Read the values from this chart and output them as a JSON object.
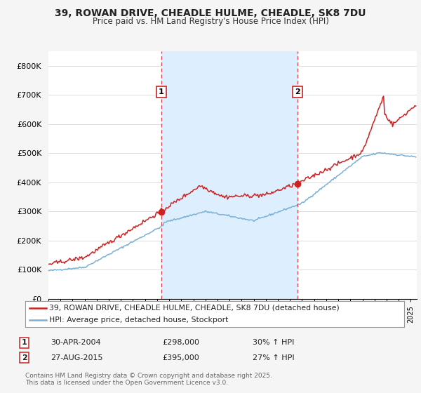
{
  "title": "39, ROWAN DRIVE, CHEADLE HULME, CHEADLE, SK8 7DU",
  "subtitle": "Price paid vs. HM Land Registry's House Price Index (HPI)",
  "legend_line1": "39, ROWAN DRIVE, CHEADLE HULME, CHEADLE, SK8 7DU (detached house)",
  "legend_line2": "HPI: Average price, detached house, Stockport",
  "annotation1": {
    "label": "1",
    "date": "30-APR-2004",
    "price": "£298,000",
    "hpi": "30% ↑ HPI"
  },
  "annotation2": {
    "label": "2",
    "date": "27-AUG-2015",
    "price": "£395,000",
    "hpi": "27% ↑ HPI"
  },
  "footer": "Contains HM Land Registry data © Crown copyright and database right 2025.\nThis data is licensed under the Open Government Licence v3.0.",
  "ylim": [
    0,
    850000
  ],
  "yticks": [
    0,
    100000,
    200000,
    300000,
    400000,
    500000,
    600000,
    700000,
    800000
  ],
  "ytick_labels": [
    "£0",
    "£100K",
    "£200K",
    "£300K",
    "£400K",
    "£500K",
    "£600K",
    "£700K",
    "£800K"
  ],
  "line_color_red": "#cc2222",
  "line_color_blue": "#7ab0d4",
  "vline_color": "#cc2222",
  "highlight_color": "#ddeeff",
  "background_color": "#f5f5f5",
  "plot_bg": "#ffffff",
  "grid_color": "#dddddd",
  "sale1_x": 2004.33,
  "sale1_y": 298000,
  "sale2_x": 2015.65,
  "sale2_y": 395000,
  "xmin": 1995,
  "xmax": 2025.5
}
